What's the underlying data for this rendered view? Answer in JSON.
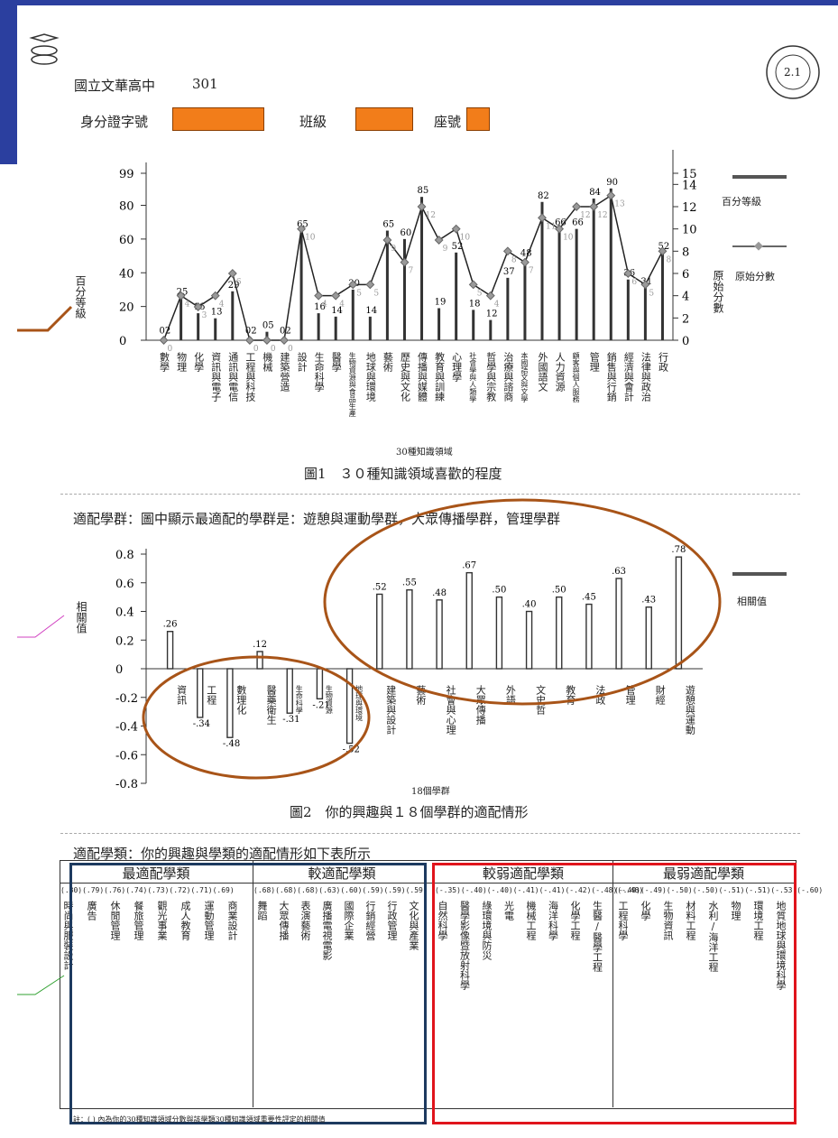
{
  "header": {
    "school": "國立文華高中",
    "class_no": "301",
    "id_label": "身分證字號",
    "class_label": "班級",
    "seat_label": "座號",
    "seal_text": "2.1"
  },
  "figure1": {
    "caption": "圖1　３０種知識領域喜歡的程度",
    "xlabel": "30種知識領域",
    "left_axis_label": "百分等級",
    "right_axis_label": "原始分數",
    "legend_bar": "百分等級",
    "legend_line": "原始分數"
  },
  "fit_group_text": "適配學群：圖中顯示最適配的學群是：遊憩與運動學群，大眾傳播學群，管理學群",
  "figure2": {
    "caption": "圖2　你的興趣與１８個學群的適配情形",
    "xlabel": "18個學群",
    "ylabel": "相關值",
    "legend": "相關值"
  },
  "fit_dept_text": "適配學類：你的興趣與學類的適配情形如下表所示",
  "table": {
    "head1": "最適配學類",
    "head2": "較適配學類",
    "head3": "較弱適配學類",
    "head4": "最弱適配學類",
    "corr_row1": "(.80)(.79)(.76)(.74)(.73)(.72)(.71)(.69)",
    "corr_row2": "(.68)(.68)(.68)(.63)(.60)(.59)(.59)(.59)",
    "corr_row3": "(-.35)(-.40)(-.40)(-.41)(-.41)(-.42)(-.48)(-.48)",
    "corr_row4": "(-.49)(-.49)(-.50)(-.50)(-.51)(-.51)(-.53)(-.60)",
    "cols1": [
      "時尚與服裝設計",
      "廣告",
      "休閒管理",
      "餐旅管理",
      "觀光事業",
      "成人教育",
      "運動管理",
      "商業設計"
    ],
    "cols2": [
      "舞蹈",
      "大眾傳播",
      "表演藝術",
      "廣播電視電影",
      "國際企業",
      "行銷經營",
      "行政管理",
      "文化與產業"
    ],
    "cols3": [
      "自然科學",
      "醫學影像暨放射科學",
      "綠環境與防災",
      "光電",
      "機械工程",
      "海洋科學",
      "化學工程",
      "生醫/醫學工程"
    ],
    "cols4": [
      "工程科學",
      "化學",
      "生物資訊",
      "材料工程",
      "水利/海洋工程",
      "物理",
      "環境工程",
      "地質地球與環境科學"
    ]
  },
  "footnote": "註：( ) 內為你的30種知識領域分數與該學類30種知識領域重要性評定的相關值",
  "chart_data": [
    {
      "type": "bar",
      "title": "圖1　３０種知識領域喜歡的程度",
      "xlabel": "30種知識領域",
      "ylabel": "百分等級",
      "y2label": "原始分數",
      "categories": [
        "數學",
        "物理",
        "化學",
        "資訊與電子",
        "通訊與電信",
        "工程與科技",
        "機械",
        "建築營造",
        "設計",
        "生命科學",
        "醫學",
        "生物資源與食品生產",
        "地球與環境",
        "藝術",
        "歷史與文化",
        "傳播與媒體",
        "教育與訓練",
        "心理學",
        "社會學與人類學",
        "哲學與宗教",
        "治療與諮商",
        "本國語文與文學",
        "外國語文",
        "人力資源",
        "顧客與個人服務",
        "管理",
        "銷售與行銷",
        "經濟與會計",
        "法律與政治",
        "行政"
      ],
      "series": [
        {
          "name": "百分等級",
          "values": [
            2,
            25,
            16,
            13,
            29,
            2,
            5,
            2,
            65,
            16,
            14,
            30,
            14,
            65,
            60,
            85,
            19,
            52,
            18,
            12,
            37,
            48,
            82,
            66,
            66,
            84,
            90,
            36,
            31,
            52
          ]
        },
        {
          "name": "原始分數",
          "values": [
            0,
            4,
            3,
            4,
            6,
            0,
            0,
            0,
            10,
            4,
            4,
            5,
            5,
            9,
            7,
            12,
            9,
            10,
            5,
            4,
            8,
            7,
            11,
            10,
            12,
            12,
            13,
            6,
            5,
            8
          ]
        }
      ],
      "y_ticks": [
        0,
        20,
        40,
        60,
        80,
        99
      ],
      "y2_ticks": [
        0,
        2,
        4,
        6,
        8,
        10,
        12,
        14,
        15
      ]
    },
    {
      "type": "bar",
      "title": "圖2　你的興趣與１８個學群的適配情形",
      "xlabel": "18個學群",
      "ylabel": "相關值",
      "categories": [
        "資訊",
        "工程",
        "數理化",
        "醫藥衛生",
        "生命科學",
        "生物資源",
        "地球與環境",
        "建築與設計",
        "藝術",
        "社會與心理",
        "大眾傳播",
        "外語",
        "文史哲",
        "教育",
        "法政",
        "管理",
        "財經",
        "遊憩與運動"
      ],
      "values": [
        0.26,
        -0.34,
        -0.48,
        0.12,
        -0.31,
        -0.21,
        -0.52,
        0.52,
        0.55,
        0.48,
        0.67,
        0.5,
        0.4,
        0.5,
        0.45,
        0.63,
        0.43,
        0.78
      ],
      "value_labels": [
        ".26",
        "-.34",
        "-.48",
        ".12",
        "-.31",
        "-.21",
        "-.52",
        ".52",
        ".55",
        ".48",
        ".67",
        ".50",
        ".40",
        ".50",
        ".45",
        ".63",
        ".43",
        ".78"
      ],
      "y_ticks": [
        "0.8",
        "0.6",
        "0.4",
        "0.2",
        "0",
        "-0.2",
        "-0.4",
        "-0.6",
        "-0.8"
      ],
      "ylim": [
        -0.8,
        0.8
      ]
    }
  ]
}
